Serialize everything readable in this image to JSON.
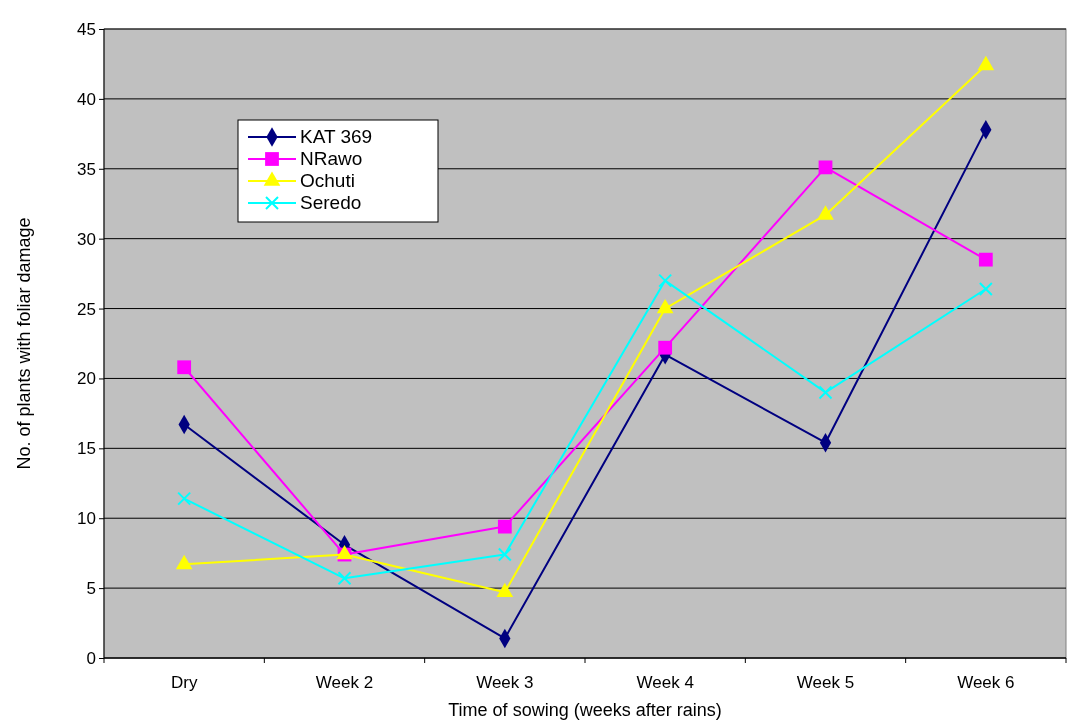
{
  "chart_data": {
    "type": "line",
    "xlabel": "Time of sowing (weeks after rains)",
    "ylabel": "No. of plants with foliar damage",
    "categories": [
      "Dry",
      "Week 2",
      "Week 3",
      "Week 4",
      "Week 5",
      "Week 6"
    ],
    "ylim": [
      0,
      45
    ],
    "yticks": [
      0,
      5,
      10,
      15,
      20,
      25,
      30,
      35,
      40,
      45
    ],
    "grid": "y",
    "legend": "top left",
    "series": [
      {
        "name": "KAT 369",
        "color": "#000080",
        "marker": "diamond",
        "values": [
          16.7,
          8.1,
          1.4,
          21.7,
          15.4,
          37.8
        ]
      },
      {
        "name": "NRawo",
        "color": "#ff00ff",
        "marker": "square",
        "values": [
          20.8,
          7.4,
          9.4,
          22.2,
          35.1,
          28.5
        ]
      },
      {
        "name": "Ochuti",
        "color": "#ffff00",
        "marker": "triangle",
        "values": [
          6.7,
          7.4,
          4.7,
          25.0,
          31.7,
          42.4
        ]
      },
      {
        "name": "Seredo",
        "color": "#00ffff",
        "marker": "cross",
        "values": [
          11.4,
          5.7,
          7.4,
          27.0,
          19.0,
          26.4
        ]
      }
    ]
  }
}
